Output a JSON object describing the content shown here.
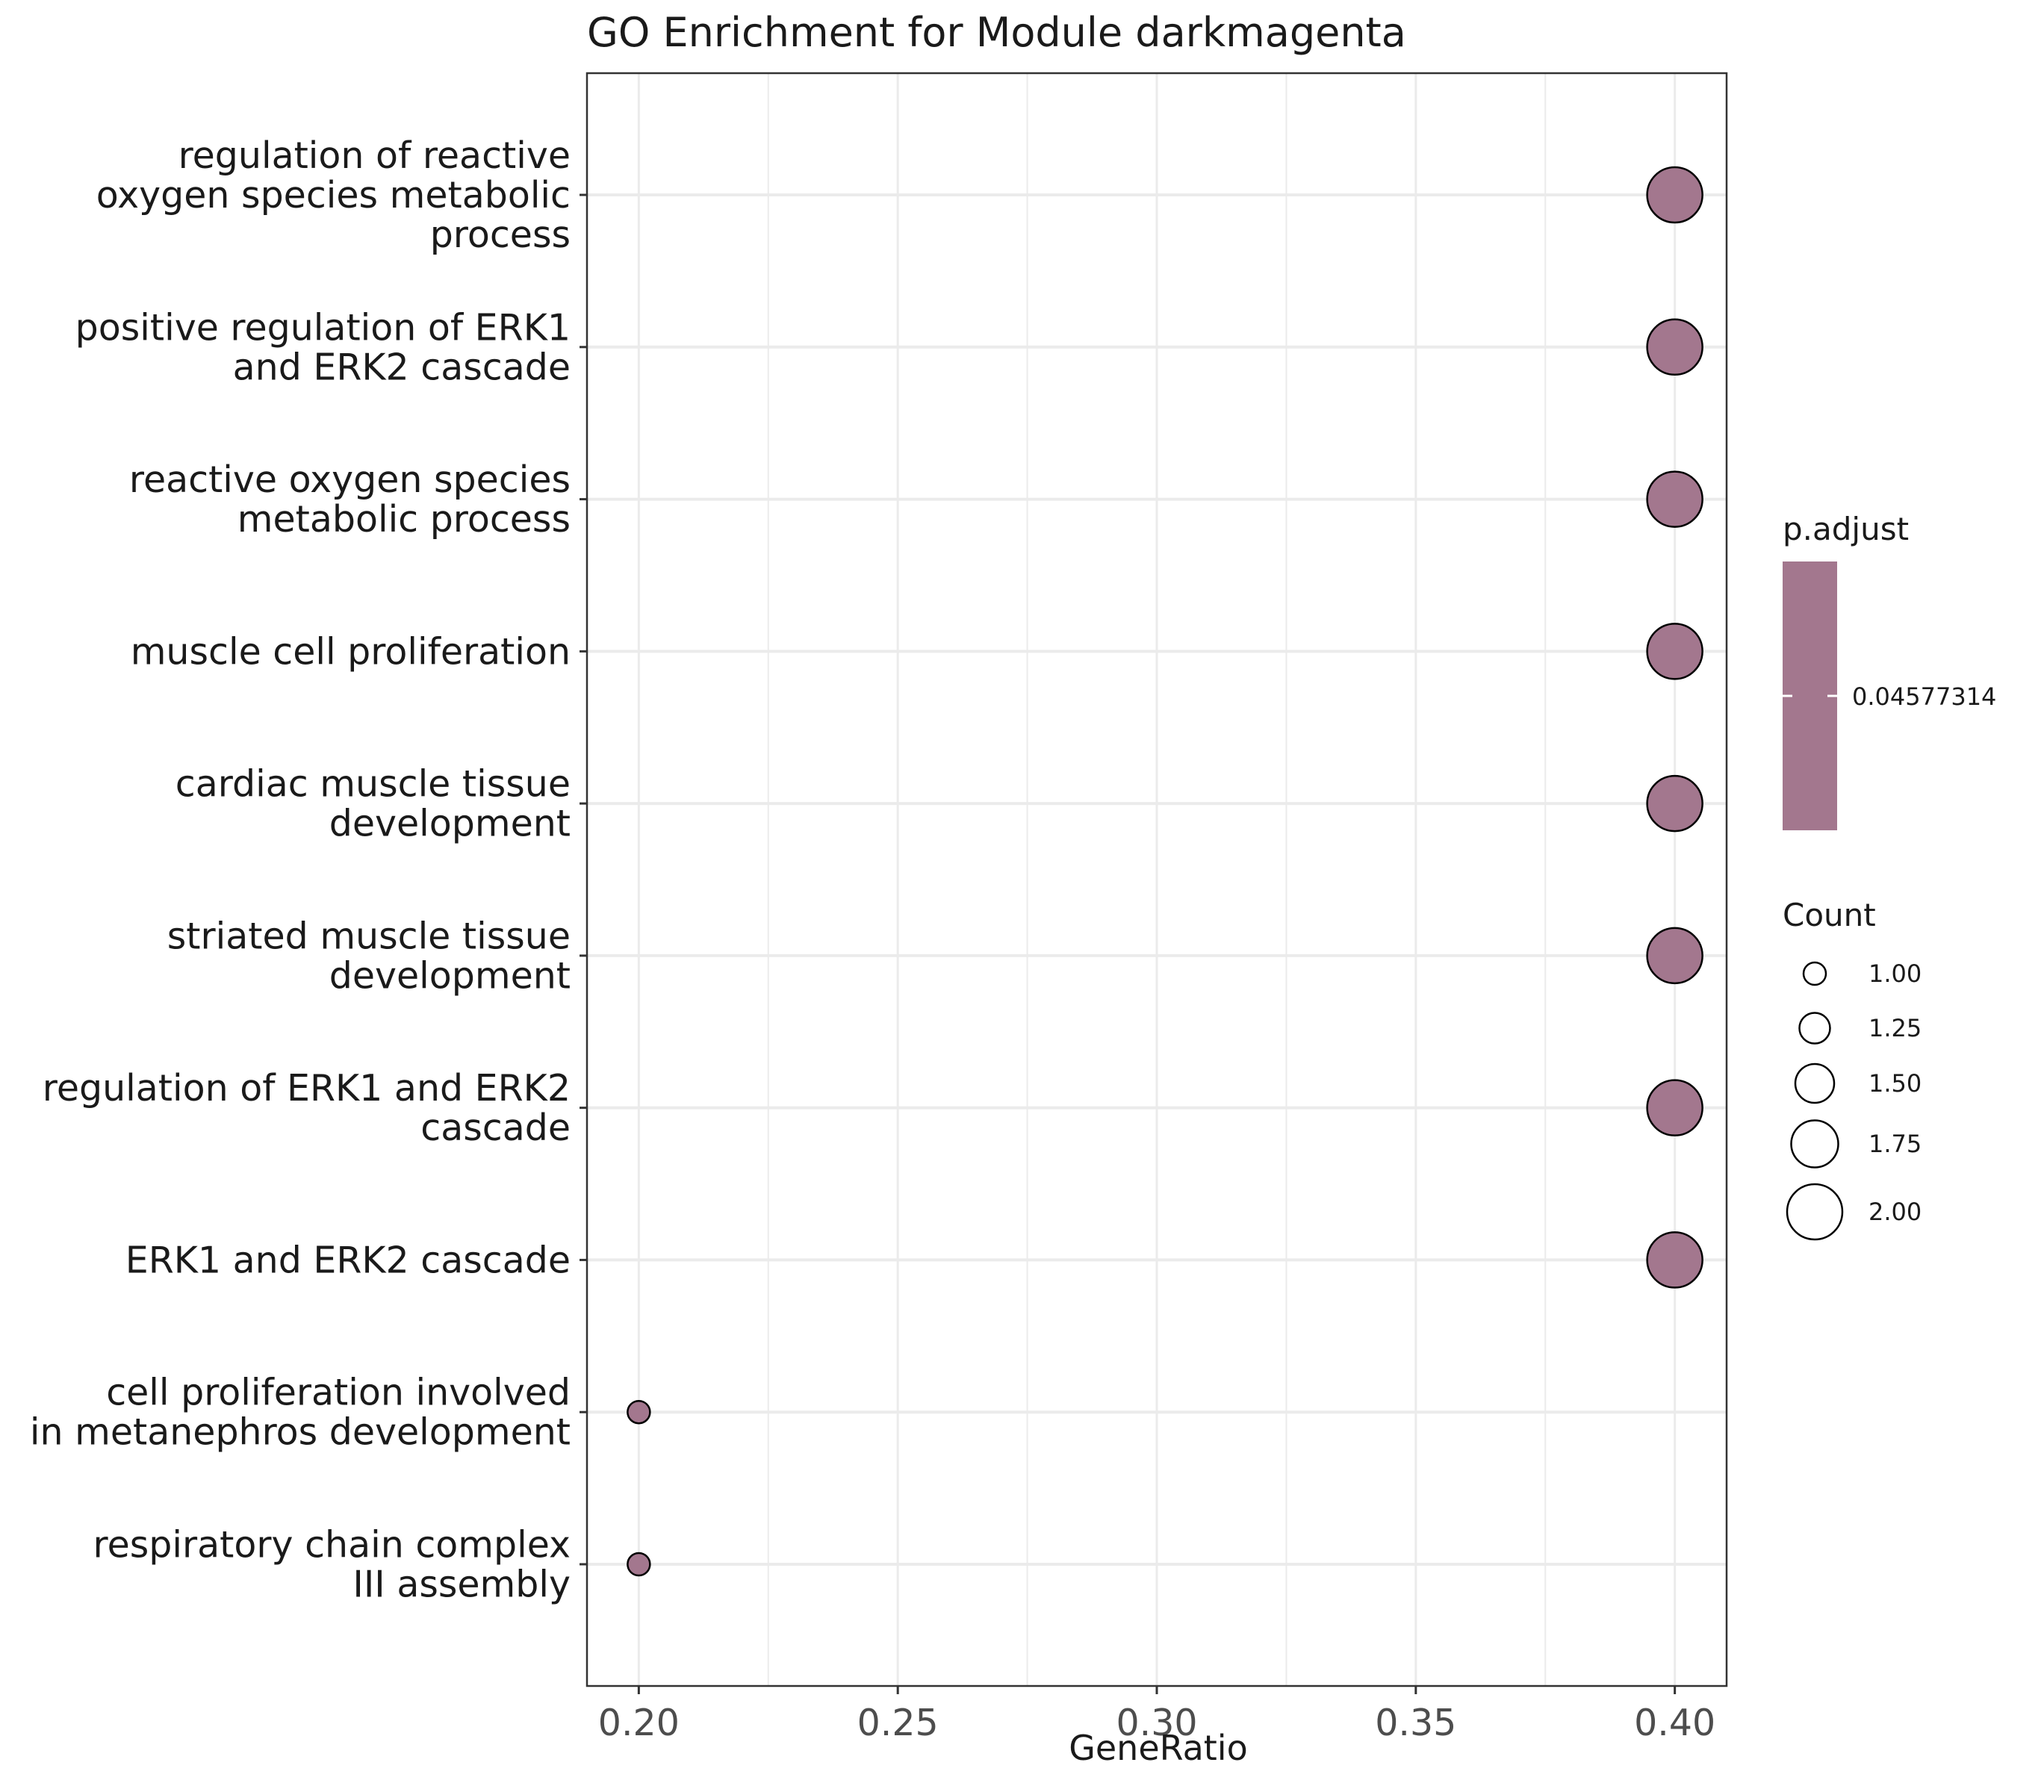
{
  "chart_data": {
    "type": "scatter",
    "title": "GO Enrichment for Module darkmagenta",
    "xlabel": "GeneRatio",
    "ylabel": "",
    "xlim": [
      0.19,
      0.41
    ],
    "x_ticks": [
      "0.20",
      "0.25",
      "0.30",
      "0.35",
      "0.40"
    ],
    "grid": true,
    "point_color": "#A3778E",
    "categories": [
      [
        "regulation of reactive",
        "oxygen species metabolic",
        "process"
      ],
      [
        "positive regulation of ERK1",
        "and ERK2 cascade"
      ],
      [
        "reactive oxygen species",
        "metabolic process"
      ],
      [
        "muscle cell proliferation"
      ],
      [
        "cardiac muscle tissue",
        "development"
      ],
      [
        "striated muscle tissue",
        "development"
      ],
      [
        "regulation of ERK1 and ERK2",
        "cascade"
      ],
      [
        "ERK1 and ERK2 cascade"
      ],
      [
        "cell proliferation involved",
        "in metanephros development"
      ],
      [
        "respiratory chain complex",
        "III assembly"
      ]
    ],
    "x": [
      0.4,
      0.4,
      0.4,
      0.4,
      0.4,
      0.4,
      0.4,
      0.4,
      0.2,
      0.2
    ],
    "count": [
      2,
      2,
      2,
      2,
      2,
      2,
      2,
      2,
      1,
      1
    ],
    "p_adjust": [
      0.04577314,
      0.04577314,
      0.04577314,
      0.04577314,
      0.04577314,
      0.04577314,
      0.04577314,
      0.04577314,
      0.04577314,
      0.04577314
    ],
    "legend_color": {
      "title": "p.adjust",
      "label": "0.04577314",
      "color": "#A3778E"
    },
    "legend_size": {
      "title": "Count",
      "values": [
        1.0,
        1.25,
        1.5,
        1.75,
        2.0
      ],
      "labels": [
        "1.00",
        "1.25",
        "1.50",
        "1.75",
        "2.00"
      ]
    }
  }
}
